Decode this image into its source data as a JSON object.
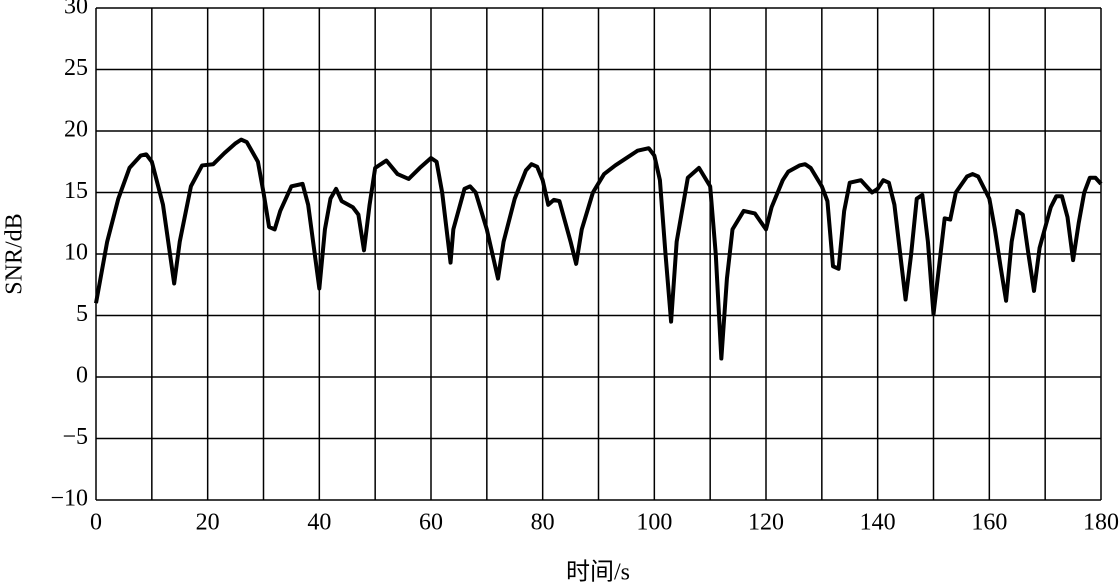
{
  "chart_data": {
    "type": "line",
    "xlabel": "时间/s",
    "ylabel": "SNR/dB",
    "color": "#000000",
    "grid": true,
    "xlim": [
      0,
      180
    ],
    "ylim": [
      -10,
      30
    ],
    "xticks": [
      0,
      {
        "value": 10,
        "label": null
      },
      20,
      {
        "value": 30,
        "label": null
      },
      40,
      {
        "value": 50,
        "label": null
      },
      60,
      {
        "value": 70,
        "label": null
      },
      80,
      {
        "value": 90,
        "label": null
      },
      100,
      {
        "value": 110,
        "label": null
      },
      120,
      {
        "value": 130,
        "label": null
      },
      140,
      {
        "value": 150,
        "label": null
      },
      160,
      {
        "value": 170,
        "label": null
      },
      180
    ],
    "yticks": [
      {
        "value": -10,
        "label": "−10"
      },
      {
        "value": -5,
        "label": "−5"
      },
      0,
      5,
      10,
      15,
      20,
      25,
      30
    ],
    "x": [
      0,
      2,
      4,
      6,
      8,
      9,
      10,
      12,
      14,
      15,
      17,
      19,
      21,
      23,
      25,
      26,
      27,
      29,
      30,
      31,
      32,
      33,
      35,
      37,
      38,
      40,
      41,
      42,
      43,
      44,
      46,
      47,
      48,
      49,
      50,
      52,
      54,
      56,
      58,
      60,
      61,
      62,
      63.5,
      64,
      66,
      67,
      68,
      70,
      72,
      73,
      75,
      77,
      78,
      79,
      80,
      81,
      82,
      83,
      85,
      86,
      87,
      89,
      91,
      93,
      95,
      97,
      99,
      100,
      101,
      102,
      103,
      104,
      106,
      108,
      110,
      111,
      112,
      113,
      114,
      116,
      118,
      120,
      121,
      123,
      124,
      126,
      127,
      128,
      130,
      131,
      132,
      133,
      134,
      135,
      137,
      139,
      140,
      141,
      142,
      143,
      145,
      146,
      147,
      148,
      149,
      150,
      151,
      152,
      153,
      154,
      156,
      157,
      158,
      160,
      161,
      162,
      163,
      164,
      165,
      166,
      167,
      168,
      169,
      171,
      172,
      173,
      174,
      175,
      176,
      177,
      178,
      179,
      180
    ],
    "values": [
      6,
      11,
      14.5,
      17,
      18,
      18.1,
      17.5,
      14,
      7.6,
      11,
      15.5,
      17.2,
      17.3,
      18.2,
      19,
      19.3,
      19.1,
      17.5,
      15,
      12.2,
      12,
      13.5,
      15.5,
      15.7,
      14,
      7.2,
      12,
      14.5,
      15.3,
      14.3,
      13.8,
      13.2,
      10.3,
      14,
      17,
      17.6,
      16.5,
      16.1,
      17,
      17.8,
      17.5,
      15,
      9.3,
      12,
      15.3,
      15.5,
      15,
      12,
      8,
      11,
      14.5,
      16.8,
      17.3,
      17.1,
      16,
      14,
      14.4,
      14.3,
      11,
      9.2,
      12,
      15,
      16.5,
      17.2,
      17.8,
      18.4,
      18.6,
      18,
      16,
      10,
      4.5,
      11,
      16.2,
      17,
      15.5,
      10,
      1.5,
      8,
      12,
      13.5,
      13.3,
      12,
      13.8,
      16,
      16.7,
      17.2,
      17.3,
      17,
      15.5,
      14.3,
      9,
      8.8,
      13.5,
      15.8,
      16,
      15,
      15.3,
      16,
      15.8,
      14,
      6.3,
      10,
      14.5,
      14.8,
      11,
      5.1,
      9,
      12.9,
      12.8,
      15,
      16.3,
      16.5,
      16.3,
      14.5,
      12,
      9,
      6.2,
      11,
      13.5,
      13.2,
      10,
      7,
      10.5,
      13.8,
      14.7,
      14.7,
      13,
      9.5,
      12.5,
      15,
      16.2,
      16.2,
      15.7
    ]
  }
}
